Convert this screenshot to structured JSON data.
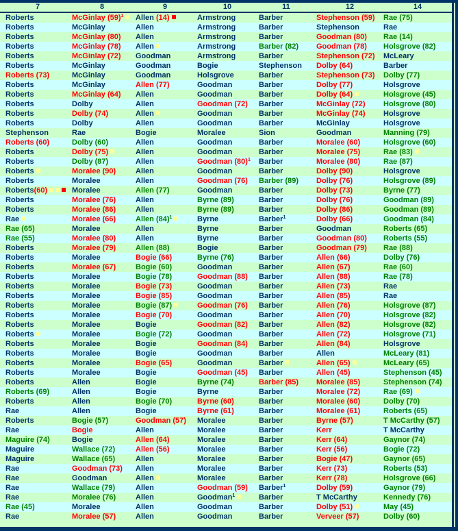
{
  "colors": {
    "navy": "#003366",
    "red": "#ff0000",
    "green": "#008000",
    "row_a": "#ccffcc",
    "row_b": "#ccffff",
    "yellow_marker": "#ffff99",
    "red_marker": "#ff0000"
  },
  "headers": [
    "7",
    "8",
    "9",
    "10",
    "11",
    "12",
    "14"
  ],
  "rows": [
    [
      "n:Roberts",
      "r:McGinlay (59)¹#y",
      "n:Allen~r: (14)#R",
      "n:Armstrong",
      "n:Barber",
      "r:Stephenson (59)",
      "g:Rae (75)"
    ],
    [
      "n:Roberts",
      "n:McGinlay",
      "n:Allen",
      "n:Armstrong",
      "n:Barber",
      "n:Stephenson",
      "n:Rae"
    ],
    [
      "n:Roberts",
      "r:McGinlay (80)",
      "n:Allen",
      "n:Armstrong",
      "n:Barber",
      "r:Goodman (80)",
      "g:Rae (14)"
    ],
    [
      "n:Roberts",
      "r:McGinlay (78)",
      "n:Allen#y",
      "n:Armstrong",
      "g:Barber (82)",
      "r:Goodman (78)",
      "g:Holsgrove (82)"
    ],
    [
      "n:Roberts",
      "r:McGinlay (72)",
      "n:Goodman",
      "n:Armstrong",
      "n:Barber",
      "r:Stephenson (72)",
      "n:McLeary"
    ],
    [
      "n:Roberts",
      "n:McGinlay",
      "n:Goodman",
      "n:Bogie",
      "n:Stephenson",
      "r:Dolby (64)",
      "n:Barber"
    ],
    [
      "r:Roberts (73)",
      "n:McGinlay",
      "n:Goodman",
      "n:Holsgrove",
      "n:Barber",
      "r:Stephenson (73)",
      "g:Dolby (77)"
    ],
    [
      "n:Roberts",
      "n:McGinlay",
      "r:Allen (77)",
      "n:Goodman",
      "n:Barber",
      "r:Dolby (77)",
      "n:Holsgrove"
    ],
    [
      "n:Roberts",
      "r:McGinlay (64)",
      "n:Allen",
      "n:Goodman",
      "n:Barber",
      "r:Dolby (64)#y",
      "g:Holsgrove (45)"
    ],
    [
      "n:Roberts",
      "n:Dolby",
      "n:Allen",
      "r:Goodman (72)",
      "n:Barber",
      "r:McGinlay (72)",
      "g:Holsgrove (80)"
    ],
    [
      "n:Roberts",
      "r:Dolby (74)",
      "n:Allen#y",
      "n:Goodman",
      "n:Barber",
      "r:McGinlay (74)",
      "n:Holsgrove"
    ],
    [
      "n:Roberts",
      "n:Dolby",
      "n:Allen",
      "n:Goodman",
      "n:Barber",
      "n:McGinlay",
      "n:Holsgrove"
    ],
    [
      "n:Stephenson",
      "n:Rae",
      "n:Bogie",
      "n:Moralee",
      "n:Sion",
      "n:Goodman",
      "g:Manning (79)"
    ],
    [
      "r:Roberts (60)",
      "g:Dolby (60)",
      "n:Allen",
      "n:Goodman",
      "n:Barber",
      "r:Moralee (60)",
      "g:Holsgrove (60)"
    ],
    [
      "n:Roberts",
      "r:Dolby (75)#y",
      "n:Allen",
      "n:Goodman",
      "n:Barber",
      "r:Moralee (75)",
      "g:Rae (83)#y"
    ],
    [
      "n:Roberts",
      "g:Dolby (87)",
      "n:Allen",
      "r:Goodman (80)¹",
      "n:Barber",
      "r:Moralee (80)",
      "g:Rae (87)"
    ],
    [
      "n:Roberts#y",
      "r:Moralee (90)",
      "n:Allen",
      "n:Goodman",
      "n:Barber",
      "r:Dolby (90)",
      "n:Holsgrove"
    ],
    [
      "n:Roberts",
      "n:Moralee",
      "n:Allen",
      "r:Goodman (76)",
      "g:Barber (89)",
      "r:Dolby (76)",
      "g:Holsgrove (89)"
    ],
    [
      "n:Roberts~r:(60)#yyR",
      "n:Moralee",
      "g:Allen (77)",
      "n:Goodman",
      "n:Barber",
      "r:Dolby (73)",
      "g:Byrne (77)"
    ],
    [
      "n:Roberts",
      "r:Moralee (76)",
      "n:Allen",
      "g:Byrne (89)",
      "n:Barber",
      "r:Dolby (76)",
      "g:Goodman (89)"
    ],
    [
      "n:Roberts",
      "r:Moralee (86)",
      "n:Allen",
      "g:Byrne (89)",
      "n:Barber",
      "r:Dolby (86)",
      "g:Goodman (89)"
    ],
    [
      "n:Rae#y",
      "r:Moralee (66)",
      "g:Allen (84)¹#y",
      "n:Byrne",
      "n:Barber¹",
      "r:Dolby (66)",
      "g:Goodman (84)"
    ],
    [
      "g:Rae (65)",
      "n:Moralee",
      "n:Allen",
      "n:Byrne",
      "n:Barber",
      "n:Goodman",
      "g:Roberts (65)"
    ],
    [
      "g:Rae (55)",
      "r:Moralee (80)",
      "n:Allen",
      "n:Byrne",
      "n:Barber",
      "r:Goodman (80)",
      "g:Roberts (55)"
    ],
    [
      "n:Roberts",
      "r:Moralee (79)",
      "g:Allen (88)",
      "n:Bogie",
      "n:Barber",
      "r:Goodman (79)",
      "g:Rae (88)"
    ],
    [
      "n:Roberts",
      "n:Moralee",
      "r:Bogie (66)",
      "g:Byrne (76)",
      "n:Barber",
      "r:Allen (66)",
      "g:Dolby (76)"
    ],
    [
      "n:Roberts",
      "r:Moralee (67)",
      "g:Bogie (60)",
      "n:Goodman",
      "n:Barber",
      "r:Allen (67)",
      "g:Rae (60)"
    ],
    [
      "n:Roberts",
      "n:Moralee",
      "g:Bogie (78)",
      "r:Goodman (88)",
      "n:Barber",
      "r:Allen (88)",
      "g:Rae (78)"
    ],
    [
      "n:Roberts",
      "n:Moralee",
      "r:Bogie (73)",
      "n:Goodman",
      "n:Barber",
      "r:Allen (73)",
      "n:Rae"
    ],
    [
      "n:Roberts",
      "n:Moralee",
      "r:Bogie (85)",
      "n:Goodman",
      "n:Barber",
      "r:Allen (85)",
      "n:Rae"
    ],
    [
      "n:Roberts",
      "n:Moralee",
      "g:Bogie (87)#y",
      "r:Goodman (76)",
      "n:Barber",
      "r:Allen (76)",
      "g:Holsgrove (87)"
    ],
    [
      "n:Roberts",
      "n:Moralee",
      "r:Bogie (70)",
      "n:Goodman",
      "n:Barber",
      "r:Allen (70)",
      "g:Holsgrove (82)"
    ],
    [
      "n:Roberts",
      "n:Moralee",
      "n:Bogie",
      "r:Goodman (82)",
      "n:Barber",
      "r:Allen (82)",
      "g:Holsgrove (82)"
    ],
    [
      "n:Roberts#y",
      "n:Moralee",
      "g:Bogie (72)",
      "n:Goodman",
      "n:Barber",
      "r:Allen (72)",
      "g:Holsgrove (71)"
    ],
    [
      "n:Roberts",
      "n:Moralee",
      "n:Bogie",
      "r:Goodman (84)",
      "n:Barber",
      "r:Allen (84)",
      "n:Holsgrove"
    ],
    [
      "n:Roberts",
      "n:Moralee",
      "n:Bogie",
      "n:Goodman",
      "n:Barber",
      "n:Allen",
      "g:McLeary (81)"
    ],
    [
      "n:Roberts",
      "n:Moralee",
      "r:Bogie (65)",
      "n:Goodman",
      "n:Barber#y",
      "r:Allen (65)#y",
      "g:McLeary (65)"
    ],
    [
      "n:Roberts",
      "n:Moralee",
      "n:Bogie",
      "r:Goodman (45)",
      "n:Barber",
      "r:Allen (45)",
      "g:Stephenson (45)"
    ],
    [
      "n:Roberts",
      "n:Allen",
      "n:Bogie",
      "g:Byrne (74)",
      "r:Barber (85)",
      "r:Moralee (85)",
      "g:Stephenson (74)"
    ],
    [
      "g:Roberts (69)",
      "n:Allen",
      "n:Bogie",
      "n:Byrne",
      "n:Barber",
      "r:Moralee (72)",
      "g:Rae (69)#y"
    ],
    [
      "n:Roberts",
      "n:Allen",
      "g:Bogie (70)",
      "r:Byrne (60)",
      "n:Barber",
      "r:Moralee (60)",
      "g:Dolby (70)"
    ],
    [
      "n:Rae",
      "n:Allen",
      "n:Bogie",
      "r:Byrne (61)",
      "n:Barber",
      "r:Moralee (61)",
      "g:Roberts (65)"
    ],
    [
      "n:Roberts",
      "g:Bogie (57)",
      "r:Goodman (57)",
      "n:Moralee",
      "n:Barber",
      "r:Byrne (57)",
      "g:T McCarthy (57)"
    ],
    [
      "n:Rae",
      "r:Bogie",
      "n:Allen",
      "n:Moralee",
      "n:Barber",
      "r:Kerr",
      "n:T McCarthy"
    ],
    [
      "g:Maguire (74)",
      "n:Bogie",
      "r:Allen (64)",
      "n:Moralee",
      "n:Barber",
      "r:Kerr (64)",
      "g:Gaynor (74)"
    ],
    [
      "n:Maguire",
      "g:Wallace (72)",
      "r:Allen (56)",
      "n:Moralee",
      "n:Barber",
      "r:Kerr (56)",
      "g:Bogie (72)"
    ],
    [
      "n:Maguire",
      "g:Wallace (65)",
      "n:Allen",
      "n:Moralee",
      "n:Barber",
      "r:Bogie (47)",
      "g:Gaynor (65)"
    ],
    [
      "n:Rae",
      "r:Goodman (73)",
      "n:Allen",
      "n:Moralee",
      "n:Barber",
      "r:Kerr (73)",
      "g:Roberts (53)"
    ],
    [
      "n:Rae",
      "n:Goodman",
      "n:Allen#y",
      "n:Moralee",
      "n:Barber",
      "r:Kerr (78)",
      "g:Holsgrove (66)"
    ],
    [
      "n:Rae",
      "g:Wallace (79)",
      "n:Allen",
      "r:Goodman (59)",
      "n:Barber¹",
      "r:Dolby (59)",
      "g:Gaynor (79)"
    ],
    [
      "n:Rae",
      "g:Moralee (76)",
      "n:Allen",
      "n:Goodman¹#y",
      "n:Barber",
      "n:T McCarthy",
      "g:Kennedy (76)"
    ],
    [
      "g:Rae (45)",
      "n:Moralee",
      "n:Allen",
      "n:Goodman",
      "n:Barber",
      "r:Dolby (51)#y",
      "g:May (45)"
    ],
    [
      "n:Rae",
      "r:Moralee (57)",
      "n:Allen",
      "n:Goodman",
      "n:Barber",
      "r:Verveer (57)",
      "g:Dolby (60)"
    ]
  ]
}
